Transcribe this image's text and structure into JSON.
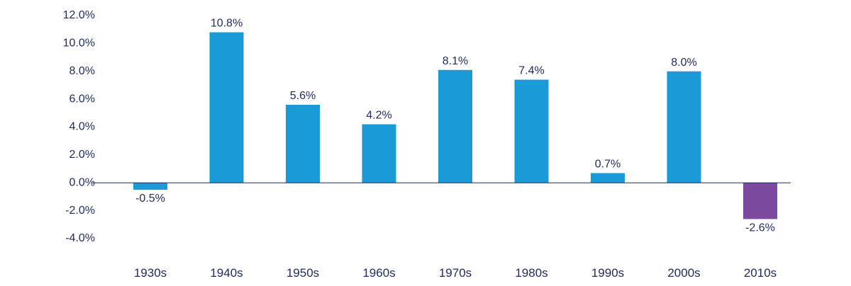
{
  "chart_data": {
    "type": "bar",
    "title": "",
    "xlabel": "",
    "ylabel": "",
    "categories": [
      "1930s",
      "1940s",
      "1950s",
      "1960s",
      "1970s",
      "1980s",
      "1990s",
      "2000s",
      "2010s"
    ],
    "values": [
      -0.5,
      10.8,
      5.6,
      4.2,
      8.1,
      7.4,
      0.7,
      8.0,
      -2.6
    ],
    "value_labels": [
      "-0.5%",
      "10.8%",
      "5.6%",
      "4.2%",
      "8.1%",
      "7.4%",
      "0.7%",
      "8.0%",
      "-2.6%"
    ],
    "ylim": [
      -4.0,
      12.0
    ],
    "y_ticks": [
      12.0,
      10.0,
      8.0,
      6.0,
      4.0,
      2.0,
      0.0,
      -2.0,
      -4.0
    ],
    "y_tick_labels": [
      "12.0%",
      "10.0%",
      "8.0%",
      "6.0%",
      "4.0%",
      "2.0%",
      "0.0%",
      "-2.0%",
      "-4.0%"
    ],
    "grid": false,
    "legend": "none",
    "colors": {
      "default_bar": "#1a9ad6",
      "highlight_bar": "#7b4a9e",
      "highlight_index": 8,
      "axis_line": "#1f2a5c",
      "text": "#1f2a5c"
    }
  }
}
